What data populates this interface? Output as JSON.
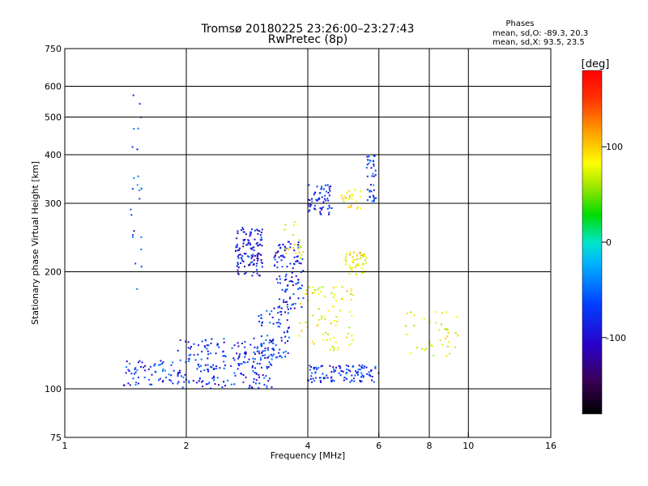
{
  "chart_data": {
    "type": "scatter",
    "title": "Tromsø 20180225 23:26:00–23:27:43",
    "subtitle": "RwPretec (8p)",
    "xlabel": "Frequency [MHz]",
    "ylabel": "Stationary phase Virtual Height [km]",
    "x_scale": "log",
    "y_scale": "log",
    "xlim": [
      1,
      16
    ],
    "ylim": [
      75,
      750
    ],
    "x_ticks": [
      1,
      2,
      4,
      6,
      8,
      10,
      16
    ],
    "x_tick_labels": [
      "1",
      "2",
      "4",
      "6",
      "8",
      "10",
      "16"
    ],
    "x_gridlines": [
      2,
      4,
      6,
      8,
      10
    ],
    "y_ticks": [
      75,
      100,
      200,
      300,
      400,
      500,
      600,
      750
    ],
    "y_tick_labels": [
      "75",
      "100",
      "200",
      "300",
      "400",
      "500",
      "600",
      "750"
    ],
    "y_gridlines": [
      100,
      200,
      300,
      400,
      500,
      600
    ],
    "grid": true,
    "phases_title": "Phases",
    "phases_line1": "mean, sd,O: -89.3, 20.3",
    "phases_line2": "mean, sd,X:  93.5, 23.5",
    "colorbar": {
      "label": "[deg]",
      "range": [
        -180,
        180
      ],
      "ticks": [
        100,
        0,
        -100
      ],
      "tick_labels": [
        "100",
        "0",
        "-100"
      ]
    },
    "series": [
      {
        "clusters": [
          {
            "freq": [
              1.9,
              3.3
            ],
            "height": [
              100,
              135
            ],
            "phase": -100,
            "count": 220
          },
          {
            "freq": [
              1.4,
              1.9
            ],
            "height": [
              102,
              120
            ],
            "phase": -95,
            "count": 60
          },
          {
            "freq": [
              2.65,
              3.1
            ],
            "height": [
              195,
              260
            ],
            "phase": -110,
            "count": 120
          },
          {
            "freq": [
              3.3,
              3.9
            ],
            "height": [
              160,
              240
            ],
            "phase": -105,
            "count": 110
          },
          {
            "freq": [
              3.0,
              3.6
            ],
            "height": [
              120,
              160
            ],
            "phase": -90,
            "count": 70
          },
          {
            "freq": [
              4.0,
              4.6
            ],
            "height": [
              280,
              335
            ],
            "phase": -100,
            "count": 60
          },
          {
            "freq": [
              4.0,
              6.0
            ],
            "height": [
              104,
              115
            ],
            "phase": -100,
            "count": 110
          },
          {
            "freq": [
              5.6,
              5.9
            ],
            "height": [
              300,
              400
            ],
            "phase": -95,
            "count": 40
          },
          {
            "freq": [
              1.45,
              1.55
            ],
            "height": [
              180,
              600
            ],
            "phase": -90,
            "count": 25
          }
        ]
      },
      {
        "clusters": [
          {
            "freq": [
              4.9,
              5.6
            ],
            "height": [
              195,
              225
            ],
            "phase": 100,
            "count": 55
          },
          {
            "freq": [
              3.8,
              5.2
            ],
            "height": [
              125,
              185
            ],
            "phase": 95,
            "count": 80
          },
          {
            "freq": [
              4.8,
              5.5
            ],
            "height": [
              290,
              325
            ],
            "phase": 100,
            "count": 25
          },
          {
            "freq": [
              7.0,
              9.5
            ],
            "height": [
              120,
              160
            ],
            "phase": 90,
            "count": 40
          },
          {
            "freq": [
              3.5,
              3.9
            ],
            "height": [
              215,
              270
            ],
            "phase": 95,
            "count": 20
          }
        ]
      }
    ]
  }
}
